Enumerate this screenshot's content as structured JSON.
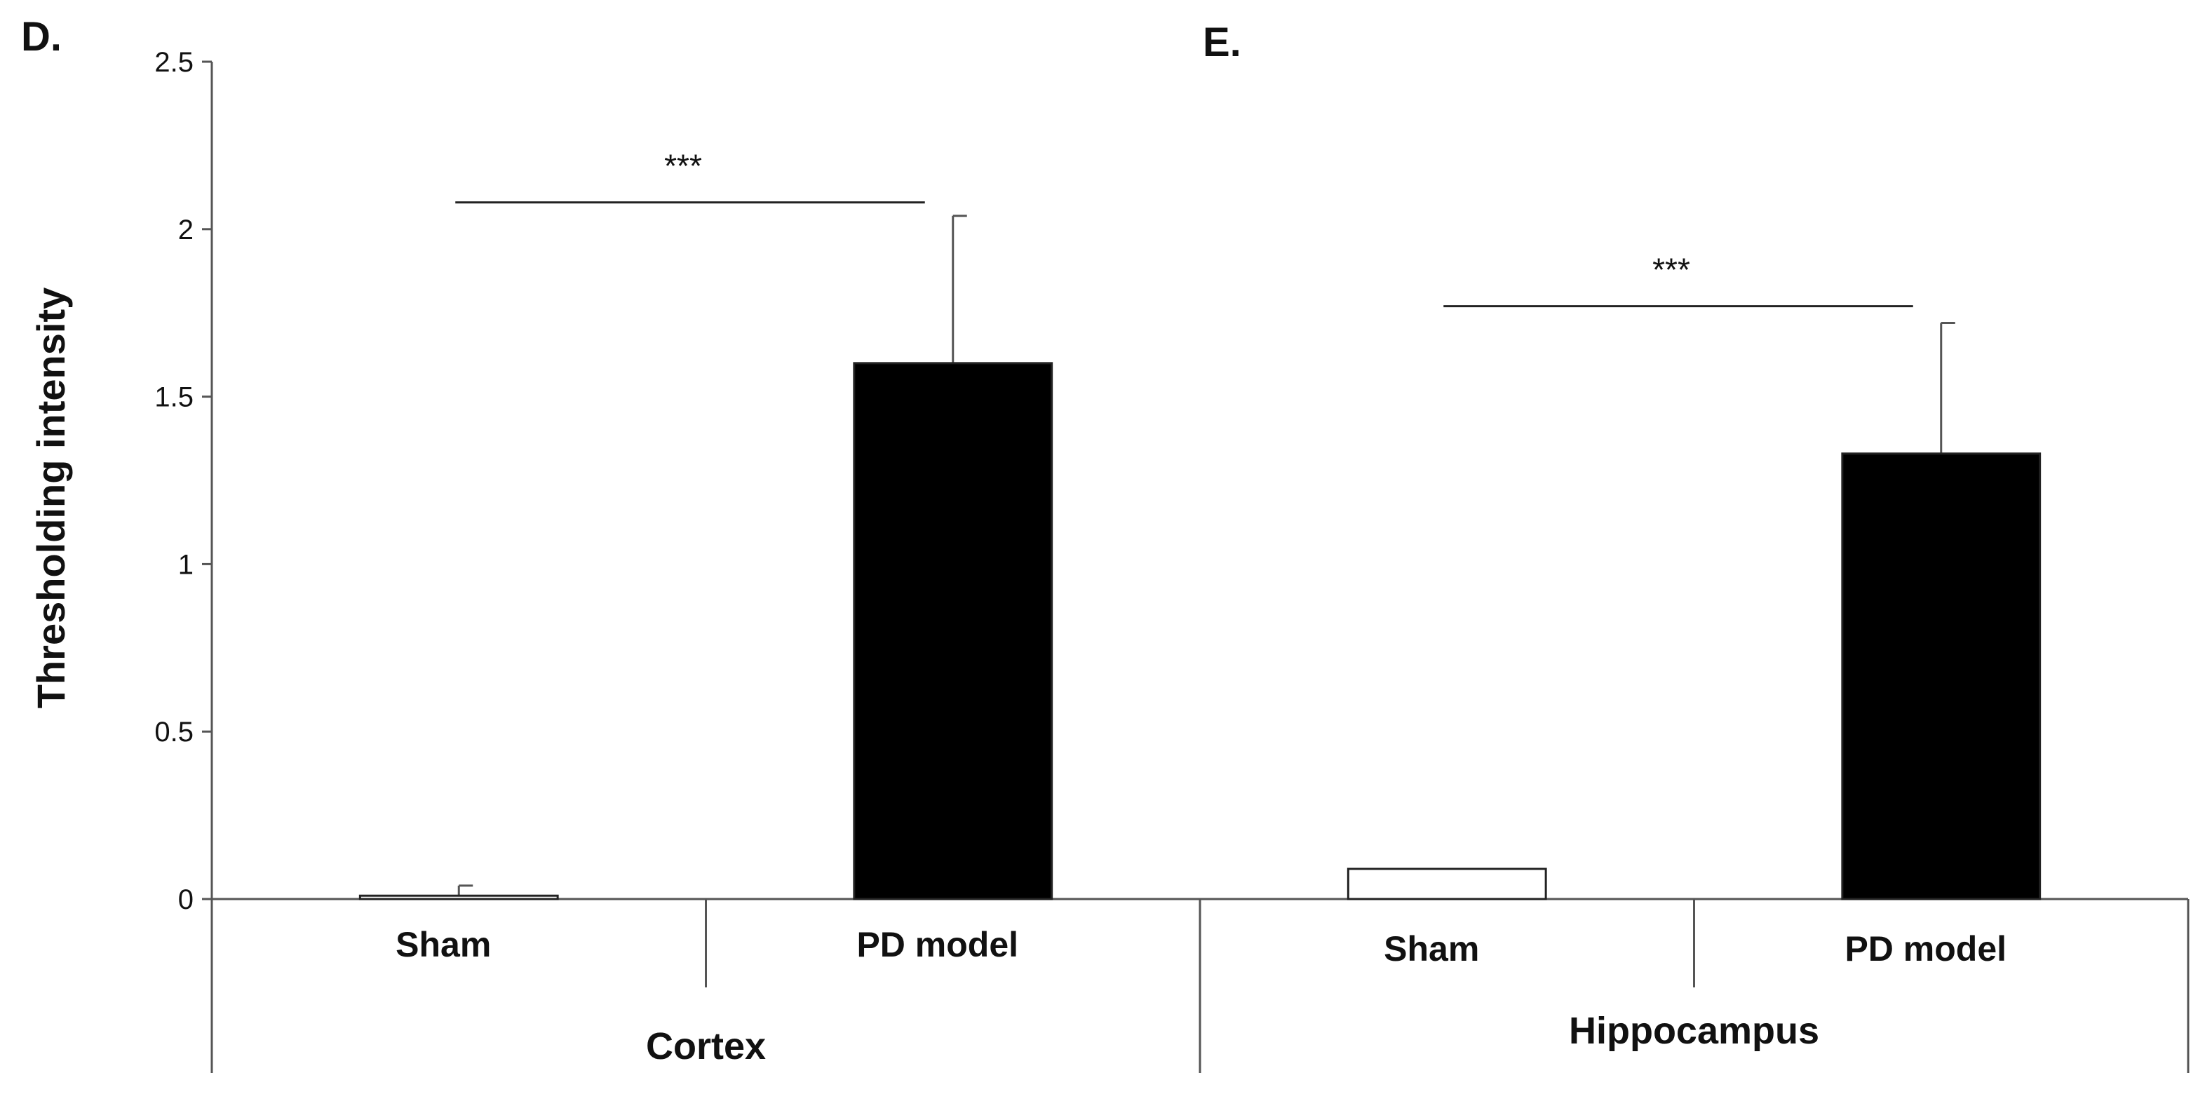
{
  "chart_data": {
    "type": "bar",
    "ylabel": "Thresholding  intensity",
    "ylim": [
      0,
      2.5
    ],
    "yticks": [
      "0",
      "0.5",
      "1",
      "1.5",
      "2",
      "2.5"
    ],
    "grid": false,
    "panels": [
      {
        "letter": "D.",
        "group": "Cortex",
        "categories": [
          "Sham",
          "PD model"
        ],
        "values": [
          0.01,
          1.6
        ],
        "errors": [
          0.03,
          0.44
        ],
        "bar_colors": [
          "#ffffff",
          "#000000"
        ],
        "significance": {
          "label": "***",
          "between": [
            0,
            1
          ],
          "y": 2.08
        }
      },
      {
        "letter": "E.",
        "group": "Hippocampus",
        "categories": [
          "Sham",
          "PD model"
        ],
        "values": [
          0.09,
          1.33
        ],
        "errors": [
          0.0,
          0.39
        ],
        "bar_colors": [
          "#ffffff",
          "#000000"
        ],
        "significance": {
          "label": "***",
          "between": [
            0,
            1
          ],
          "y": 1.77
        }
      }
    ]
  }
}
